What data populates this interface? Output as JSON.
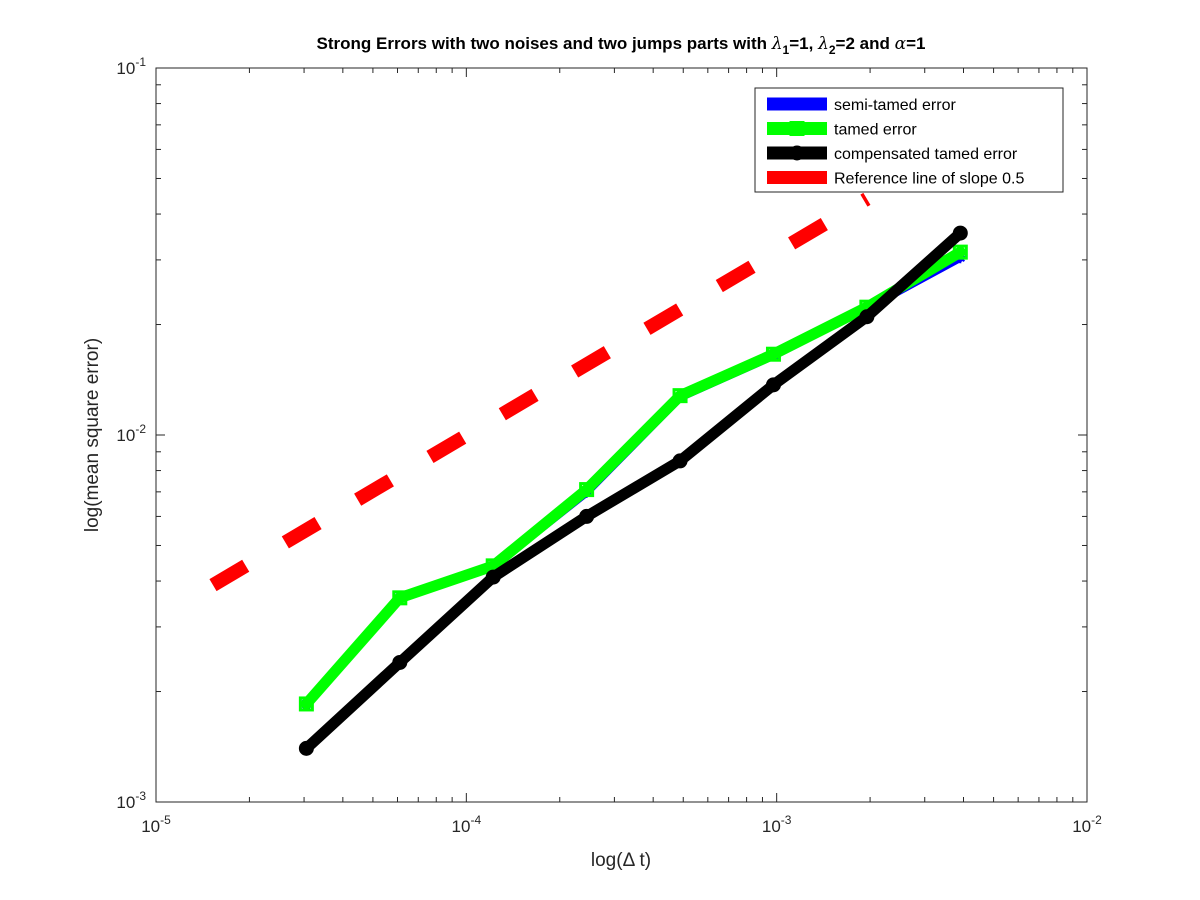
{
  "chart_data": {
    "type": "line",
    "title": "Strong Errors with two noises and two jumps parts with λ1=1, λ2=2 and α=1",
    "title_parts": {
      "prefix": "Strong Errors with two noises and two jumps parts with ",
      "lambda": "λ",
      "sub1": "1",
      "mid1": "=1, ",
      "sub2": "2",
      "mid2": "=2 and ",
      "alpha": "α",
      "suffix": "=1"
    },
    "xlabel": "log(Δ t)",
    "ylabel": "log(mean square error)",
    "xscale": "log",
    "yscale": "log",
    "xlim": [
      1e-05,
      0.01
    ],
    "ylim": [
      0.001,
      0.1
    ],
    "x_ticks": [
      {
        "base": "10",
        "exp": "-5",
        "value": 1e-05
      },
      {
        "base": "10",
        "exp": "-4",
        "value": 0.0001
      },
      {
        "base": "10",
        "exp": "-3",
        "value": 0.001
      },
      {
        "base": "10",
        "exp": "-2",
        "value": 0.01
      }
    ],
    "y_ticks": [
      {
        "base": "10",
        "exp": "-3",
        "value": 0.001
      },
      {
        "base": "10",
        "exp": "-2",
        "value": 0.01
      },
      {
        "base": "10",
        "exp": "-1",
        "value": 0.1
      }
    ],
    "grid": false,
    "legend_position": "top-right",
    "series": [
      {
        "name": "semi-tamed error",
        "color": "#0000ff",
        "line_style": "solid",
        "marker": "star",
        "x": [
          3.0518e-05,
          6.1035e-05,
          0.00012207,
          0.00024414,
          0.00048828,
          0.00097656,
          0.0019531,
          0.0039063
        ],
        "y": [
          0.00185,
          0.0036,
          0.0044,
          0.007,
          0.0127,
          0.0165,
          0.0222,
          0.0305
        ]
      },
      {
        "name": "tamed error",
        "color": "#00ff00",
        "line_style": "solid",
        "marker": "square",
        "x": [
          3.0518e-05,
          6.1035e-05,
          0.00012207,
          0.00024414,
          0.00048828,
          0.00097656,
          0.0019531,
          0.0039063
        ],
        "y": [
          0.00185,
          0.0036,
          0.0044,
          0.0071,
          0.0128,
          0.0166,
          0.0223,
          0.0315
        ]
      },
      {
        "name": "compensated tamed error",
        "color": "#000000",
        "line_style": "solid",
        "marker": "circle",
        "x": [
          3.0518e-05,
          6.1035e-05,
          0.00012207,
          0.00024414,
          0.00048828,
          0.00097656,
          0.0019531,
          0.0039063
        ],
        "y": [
          0.0014,
          0.0024,
          0.0041,
          0.006,
          0.0085,
          0.0137,
          0.021,
          0.0355
        ]
      },
      {
        "name": "Reference line of slope 0.5",
        "color": "#ff0000",
        "line_style": "dashed",
        "marker": "none",
        "x": [
          1.5259e-05,
          0.0019531
        ],
        "y": [
          0.0039,
          0.044
        ]
      }
    ]
  }
}
